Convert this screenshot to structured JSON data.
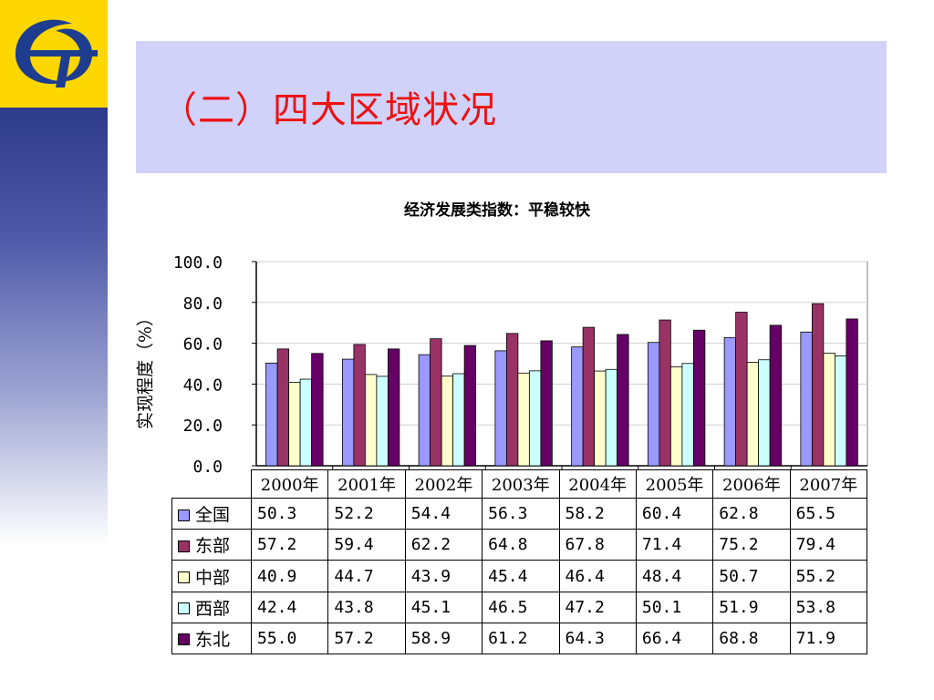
{
  "slide": {
    "title": "（二）四大区域状况"
  },
  "colors": {
    "title": "#ee1111",
    "title_bar": "#d0d2f9",
    "logo_bg": "#ffd700",
    "logo_mark": "#1f3d8f"
  },
  "icons": {
    "logo": "statistics-bureau-logo-icon"
  },
  "chart_data": {
    "type": "bar",
    "title": "经济发展类指数：平稳较快",
    "xlabel": "",
    "ylabel": "实现程度（%）",
    "ylim": [
      0,
      100
    ],
    "yticks": [
      "100.0",
      "80.0",
      "60.0",
      "40.0",
      "20.0",
      "0.0"
    ],
    "ytick_values": [
      100,
      80,
      60,
      40,
      20,
      0
    ],
    "grid": true,
    "legend": "data-table-below",
    "categories": [
      "2000年",
      "2001年",
      "2002年",
      "2003年",
      "2004年",
      "2005年",
      "2006年",
      "2007年"
    ],
    "series": [
      {
        "name": "全国",
        "color": "#9999ff",
        "values": [
          "50.3",
          "52.2",
          "54.4",
          "56.3",
          "58.2",
          "60.4",
          "62.8",
          "65.5"
        ]
      },
      {
        "name": "东部",
        "color": "#993366",
        "values": [
          "57.2",
          "59.4",
          "62.2",
          "64.8",
          "67.8",
          "71.4",
          "75.2",
          "79.4"
        ]
      },
      {
        "name": "中部",
        "color": "#ffffcc",
        "values": [
          "40.9",
          "44.7",
          "43.9",
          "45.4",
          "46.4",
          "48.4",
          "50.7",
          "55.2"
        ]
      },
      {
        "name": "西部",
        "color": "#ccffff",
        "values": [
          "42.4",
          "43.8",
          "45.1",
          "46.5",
          "47.2",
          "50.1",
          "51.9",
          "53.8"
        ]
      },
      {
        "name": "东北",
        "color": "#660066",
        "values": [
          "55.0",
          "57.2",
          "58.9",
          "61.2",
          "64.3",
          "66.4",
          "68.8",
          "71.9"
        ]
      }
    ]
  }
}
